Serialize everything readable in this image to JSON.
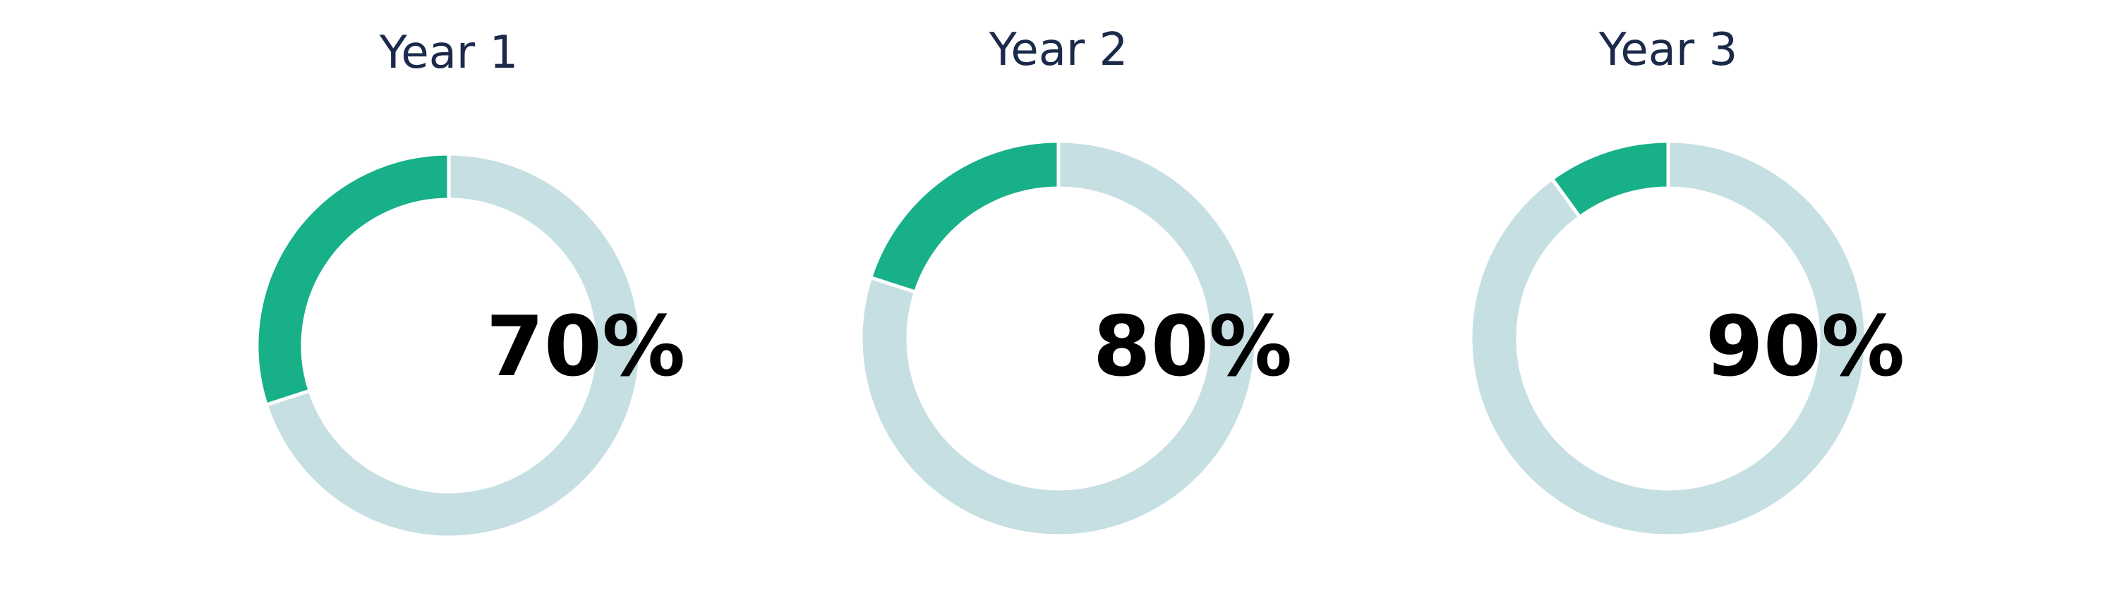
{
  "chart_data": [
    {
      "type": "pie",
      "title": "Year 1",
      "center_label": "70%",
      "slices": [
        {
          "label": "",
          "value": 70,
          "color": "#c6dfe2"
        },
        {
          "label": "",
          "value": 30,
          "color": "#17b088"
        }
      ]
    },
    {
      "type": "pie",
      "title": "Year 2",
      "center_label": "80%",
      "slices": [
        {
          "label": "",
          "value": 80,
          "color": "#c6dfe2"
        },
        {
          "label": "",
          "value": 20,
          "color": "#17b088"
        }
      ]
    },
    {
      "type": "pie",
      "title": "Year 3",
      "center_label": "90%",
      "slices": [
        {
          "label": "",
          "value": 90,
          "color": "#c6dfe2"
        },
        {
          "label": "",
          "value": 10,
          "color": "#17b088"
        }
      ]
    }
  ]
}
